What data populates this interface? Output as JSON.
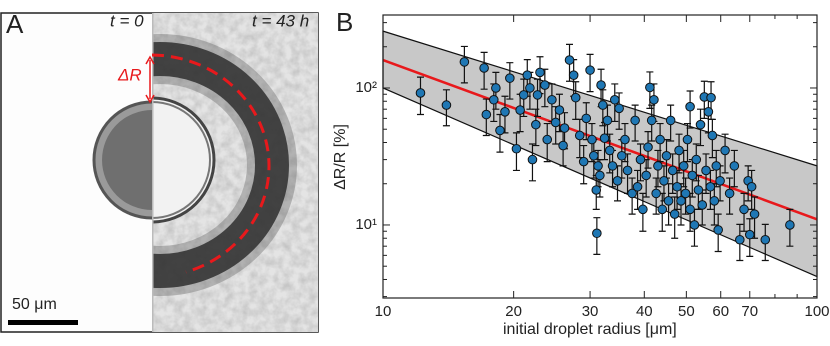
{
  "panel_a": {
    "label": "A",
    "left_caption": "t = 0",
    "right_caption": "t = 43 h",
    "arrow_label": "ΔR",
    "scale_bar": "50 μm"
  },
  "chart_data": {
    "type": "scatter",
    "panel_label": "B",
    "x_label": "initial droplet radius [μm]",
    "y_label": "ΔR/R [%]",
    "log_x": true,
    "log_y": true,
    "xlim": [
      10,
      100
    ],
    "ylim": [
      2.93,
      341
    ],
    "xticks": [
      10,
      20,
      30,
      40,
      50,
      60,
      70,
      100
    ],
    "xminorticks": [
      80,
      90
    ],
    "yticks": [
      {
        "value": 10,
        "label": "10¹"
      },
      {
        "value": 100,
        "label": "10²"
      }
    ],
    "yminorticks": [
      3,
      4,
      5,
      6,
      7,
      8,
      9,
      20,
      30,
      40,
      50,
      60,
      70,
      80,
      90,
      200,
      300
    ],
    "band": {
      "x": [
        10,
        100
      ],
      "upper": [
        260,
        27
      ],
      "lower": [
        100,
        4.2
      ],
      "color": "#c8c8c8"
    },
    "fit": {
      "x": [
        10,
        100
      ],
      "values": [
        160,
        11
      ],
      "color": "#e8191c"
    },
    "series": [
      {
        "color": "#1f77b4",
        "x": [
          12.2,
          14.0,
          15.4,
          17.1,
          17.3,
          18.0,
          18.2,
          18.6,
          19.1,
          19.6,
          20.3,
          20.7,
          21.1,
          21.5,
          21.8,
          22.1,
          22.5,
          22.7,
          23.0,
          23.6,
          23.9,
          24.5,
          25.0,
          25.5,
          26.0,
          26.2,
          26.9,
          27.5,
          27.8,
          28.4,
          29.0,
          29.4,
          30.0,
          30.3,
          30.6,
          31.0,
          31.1,
          31.3,
          31.6,
          31.8,
          32.1,
          32.4,
          32.9,
          33.3,
          33.8,
          34.2,
          34.7,
          35.5,
          36.1,
          36.6,
          37.5,
          38.1,
          38.6,
          39.2,
          39.7,
          40.4,
          40.8,
          41.2,
          41.6,
          42.1,
          42.6,
          43.0,
          43.5,
          44.0,
          44.4,
          45.0,
          45.5,
          46.0,
          46.5,
          47.0,
          47.6,
          48.1,
          48.6,
          49.3,
          49.8,
          50.3,
          51.0,
          51.6,
          52.2,
          52.7,
          53.3,
          53.9,
          54.4,
          55.0,
          55.5,
          56.2,
          56.8,
          57.4,
          58.0,
          58.6,
          59.2,
          59.8,
          61.4,
          62.9,
          64.5,
          66.4,
          67.9,
          69.4,
          70.0,
          70.7,
          71.8,
          76.0,
          86.6,
          35.0,
          51.0,
          57.0
        ],
        "values": [
          92,
          75,
          155,
          140,
          64,
          82,
          100,
          49,
          67,
          118,
          36,
          69,
          89,
          124,
          100,
          30,
          54,
          89,
          130,
          105,
          42,
          82,
          56,
          69,
          38,
          51,
          160,
          124,
          85,
          45,
          29,
          60,
          135,
          42,
          32,
          18,
          8.7,
          27,
          23,
          105,
          75,
          43,
          58,
          35,
          27,
          82,
          21,
          32,
          42,
          25,
          17,
          58,
          19,
          30,
          13,
          23,
          37,
          101,
          58,
          82,
          17,
          27,
          42,
          13,
          21,
          32,
          15,
          58,
          25,
          12,
          19,
          35,
          15,
          27,
          17,
          42,
          13,
          23,
          10,
          30,
          18,
          54,
          14,
          86,
          25,
          67,
          19,
          45,
          15,
          27,
          9.2,
          21,
          35,
          17,
          27,
          7.8,
          13,
          21,
          8.5,
          19,
          12,
          7.8,
          10,
          71,
          73,
          85
        ],
        "errors": [
          28,
          22,
          46,
          42,
          19,
          25,
          30,
          15,
          20,
          35,
          11,
          21,
          27,
          37,
          30,
          9,
          16,
          27,
          39,
          32,
          13,
          25,
          17,
          21,
          11,
          15,
          48,
          37,
          26,
          14,
          9,
          18,
          41,
          13,
          10,
          5,
          2.6,
          8,
          7,
          32,
          22,
          13,
          17,
          11,
          8,
          25,
          6,
          10,
          13,
          8,
          5,
          17,
          6,
          9,
          4,
          7,
          11,
          30,
          17,
          25,
          5,
          8,
          13,
          4,
          6,
          10,
          5,
          17,
          8,
          4,
          6,
          11,
          5,
          8,
          5,
          13,
          4,
          7,
          3,
          9,
          5,
          16,
          4,
          26,
          8,
          20,
          6,
          14,
          5,
          8,
          2.8,
          6,
          11,
          5,
          8,
          2.3,
          4,
          6,
          2.6,
          6,
          4,
          2.3,
          3,
          21,
          22,
          26
        ]
      }
    ]
  }
}
